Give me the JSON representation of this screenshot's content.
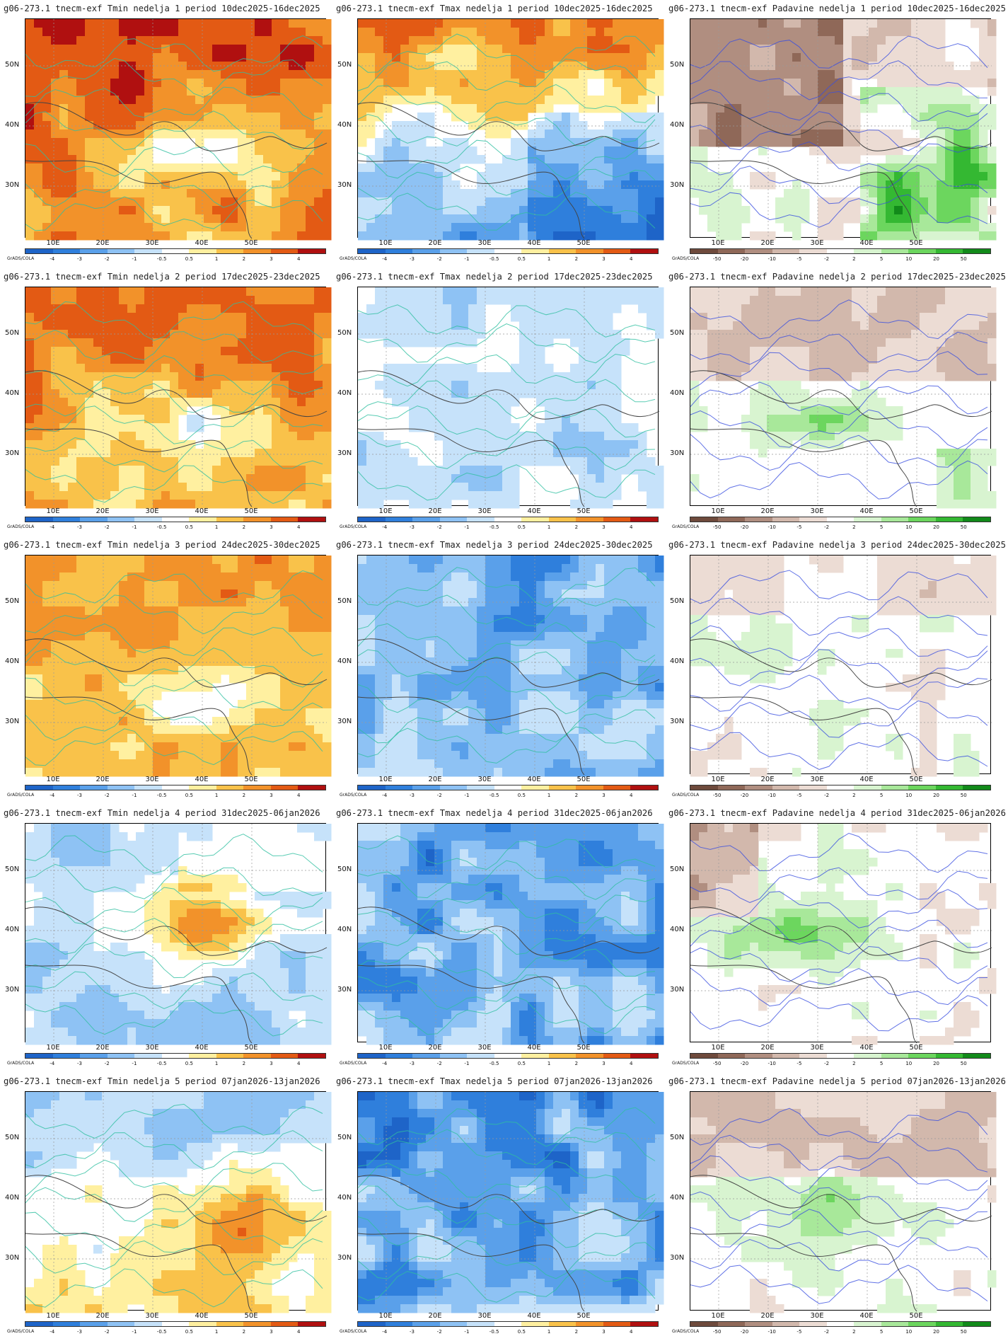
{
  "source_label": "GrADS/COLA",
  "latitude_labels": [
    "50N",
    "40N",
    "30N"
  ],
  "longitude_labels": [
    "10E",
    "20E",
    "30E",
    "40E",
    "50E"
  ],
  "colorbars": {
    "temp": {
      "labels": [
        "-4",
        "-3",
        "-2",
        "-1",
        "-0.5",
        "0.5",
        "1",
        "2",
        "3",
        "4"
      ],
      "colors": [
        "#1e64c8",
        "#2f7fdc",
        "#5aa0ea",
        "#8ec2f4",
        "#c6e2fa",
        "#ffffff",
        "#fff0a0",
        "#f9c24a",
        "#f2922a",
        "#e35a14",
        "#b01010"
      ]
    },
    "precip": {
      "labels": [
        "-50",
        "-20",
        "-10",
        "-5",
        "-2",
        "2",
        "5",
        "10",
        "20",
        "50"
      ],
      "colors": [
        "#6e4a3c",
        "#8f6858",
        "#b08e80",
        "#d2b8ac",
        "#ecdcd4",
        "#ffffff",
        "#d8f4d0",
        "#a8e89a",
        "#6cd65e",
        "#34b832",
        "#128a1a"
      ]
    }
  },
  "panels": [
    {
      "title": "g06-273.1 tnecm-exf Tmin nedelja 1 period 10dec2025-16dec2025",
      "kind": "temp",
      "theme": "warm",
      "intensity": 0.9
    },
    {
      "title": "g06-273.1 tnecm-exf Tmax nedelja 1 period 10dec2025-16dec2025",
      "kind": "temp",
      "theme": "warmnorth_coldsouth",
      "intensity": 0.7
    },
    {
      "title": "g06-273.1 tnecm-exf Padavine nedelja 1 period 10dec2025-16dec2025",
      "kind": "precip",
      "theme": "dry_north_wet_east",
      "intensity": 0.8
    },
    {
      "title": "g06-273.1 tnecm-exf Tmin nedelja 2 period 17dec2025-23dec2025",
      "kind": "temp",
      "theme": "warm",
      "intensity": 0.75
    },
    {
      "title": "g06-273.1 tnecm-exf Tmax nedelja 2 period 17dec2025-23dec2025",
      "kind": "temp",
      "theme": "cool",
      "intensity": 0.45
    },
    {
      "title": "g06-273.1 tnecm-exf Padavine nedelja 2 period 17dec2025-23dec2025",
      "kind": "precip",
      "theme": "dry_north_wet_med",
      "intensity": 0.6
    },
    {
      "title": "g06-273.1 tnecm-exf Tmin nedelja 3 period 24dec2025-30dec2025",
      "kind": "temp",
      "theme": "warm",
      "intensity": 0.6
    },
    {
      "title": "g06-273.1 tnecm-exf Tmax nedelja 3 period 24dec2025-30dec2025",
      "kind": "temp",
      "theme": "cold",
      "intensity": 0.7
    },
    {
      "title": "g06-273.1 tnecm-exf Padavine nedelja 3 period 24dec2025-30dec2025",
      "kind": "precip",
      "theme": "wet_west",
      "intensity": 0.5
    },
    {
      "title": "g06-273.1 tnecm-exf Tmin nedelja 4 period 31dec2025-06jan2026",
      "kind": "temp",
      "theme": "mixed_center_warm",
      "intensity": 0.6
    },
    {
      "title": "g06-273.1 tnecm-exf Tmax nedelja 4 period 31dec2025-06jan2026",
      "kind": "temp",
      "theme": "cold",
      "intensity": 0.85
    },
    {
      "title": "g06-273.1 tnecm-exf Padavine nedelja 4 period 31dec2025-06jan2026",
      "kind": "precip",
      "theme": "wet_med",
      "intensity": 0.65
    },
    {
      "title": "g06-273.1 tnecm-exf Tmin nedelja 5 period 07jan2026-13jan2026",
      "kind": "temp",
      "theme": "cold_north_warm_east",
      "intensity": 0.7
    },
    {
      "title": "g06-273.1 tnecm-exf Tmax nedelja 5 period 07jan2026-13jan2026",
      "kind": "temp",
      "theme": "cold",
      "intensity": 0.9
    },
    {
      "title": "g06-273.1 tnecm-exf Padavine nedelja 5 period 07jan2026-13jan2026",
      "kind": "precip",
      "theme": "wet_east_med",
      "intensity": 0.65
    }
  ]
}
